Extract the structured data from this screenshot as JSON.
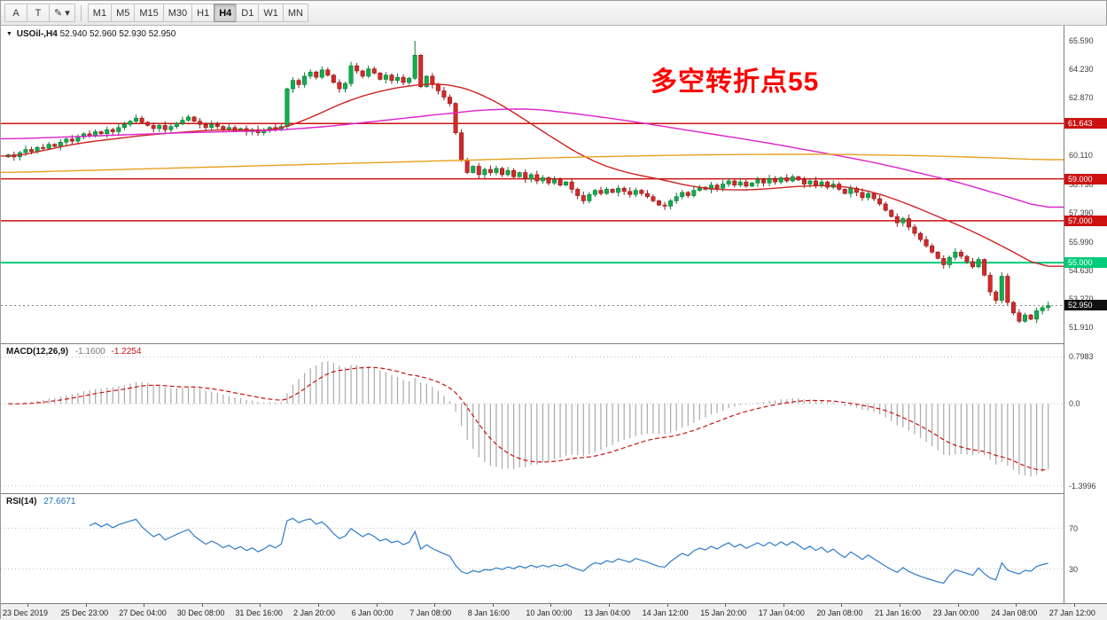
{
  "toolbar": {
    "tools": [
      {
        "id": "text-tool-button",
        "glyph": "A"
      },
      {
        "id": "cursor-tool-button",
        "glyph": "T"
      },
      {
        "id": "draw-objects-button",
        "glyph": "✎",
        "dropdown": true
      }
    ],
    "dropdown_glyph": "▾",
    "timeframes": [
      "M1",
      "M5",
      "M15",
      "M30",
      "H1",
      "H4",
      "D1",
      "W1",
      "MN"
    ],
    "active_timeframe": "H4"
  },
  "chart": {
    "symbol_label": "USOil-,H4",
    "ohlc_text": "52.940 52.960 52.930 52.950",
    "dropdown_glyph": "▼",
    "annotation": {
      "text": "多空转折点55",
      "color": "#ff0000"
    }
  },
  "indicators": {
    "macd": {
      "name": "MACD(12,26,9)",
      "value_main": "-1.1600",
      "value_signal": "-1.2254",
      "scale_labels": [
        "0.7983",
        "0.0",
        "-1.3996"
      ]
    },
    "rsi": {
      "name": "RSI(14)",
      "value": "27.6671",
      "scale_labels": [
        "70",
        "30"
      ]
    }
  },
  "chart_data": {
    "type": "candlestick",
    "title": "USOil H4 chart with MACD and RSI",
    "ylim": [
      51.15,
      66.31
    ],
    "price_ticks": [
      "65.590",
      "64.230",
      "62.870",
      "60.110",
      "58.750",
      "57.390",
      "55.990",
      "54.630",
      "53.270",
      "51.910"
    ],
    "hlines": [
      {
        "price": 61.643,
        "label": "61.643",
        "color": "#cc1111"
      },
      {
        "price": 59.0,
        "label": "59.000",
        "color": "#cc1111"
      },
      {
        "price": 57.0,
        "label": "57.000",
        "color": "#cc1111"
      },
      {
        "price": 55.0,
        "label": "55.000",
        "color": "#00cc7a"
      }
    ],
    "current_price": {
      "value": 52.95,
      "label": "52.950",
      "bg": "#111111"
    },
    "candles": {
      "closes": [
        60.15,
        60.05,
        60.25,
        60.4,
        60.3,
        60.5,
        60.45,
        60.65,
        60.55,
        60.75,
        60.9,
        60.8,
        61.0,
        61.15,
        61.05,
        61.25,
        61.15,
        61.35,
        61.25,
        61.45,
        61.6,
        61.75,
        61.9,
        61.7,
        61.55,
        61.4,
        61.55,
        61.35,
        61.5,
        61.65,
        61.8,
        61.95,
        61.75,
        61.6,
        61.45,
        61.6,
        61.5,
        61.35,
        61.45,
        61.3,
        61.4,
        61.25,
        61.35,
        61.2,
        61.3,
        61.45,
        61.35,
        61.5,
        63.3,
        63.7,
        63.5,
        63.9,
        64.1,
        63.85,
        64.2,
        63.95,
        63.6,
        63.3,
        63.55,
        64.4,
        64.15,
        63.9,
        64.25,
        64.05,
        63.75,
        63.95,
        63.7,
        63.85,
        63.6,
        63.8,
        64.9,
        63.4,
        63.9,
        63.5,
        63.2,
        62.9,
        62.6,
        61.2,
        59.9,
        59.3,
        59.6,
        59.2,
        59.45,
        59.3,
        59.5,
        59.2,
        59.4,
        59.1,
        59.3,
        59.0,
        59.2,
        58.9,
        59.05,
        58.8,
        58.95,
        58.7,
        58.85,
        58.5,
        58.2,
        57.95,
        58.25,
        58.45,
        58.3,
        58.5,
        58.35,
        58.55,
        58.4,
        58.25,
        58.45,
        58.3,
        58.15,
        57.95,
        57.75,
        57.7,
        57.95,
        58.15,
        58.35,
        58.2,
        58.45,
        58.6,
        58.5,
        58.7,
        58.55,
        58.75,
        58.9,
        58.7,
        58.85,
        58.65,
        58.8,
        58.95,
        58.8,
        59.0,
        58.85,
        59.05,
        58.9,
        59.1,
        58.95,
        58.75,
        58.9,
        58.7,
        58.85,
        58.6,
        58.75,
        58.5,
        58.3,
        58.55,
        58.35,
        58.1,
        58.3,
        58.05,
        57.8,
        57.5,
        57.2,
        56.9,
        57.1,
        56.7,
        56.4,
        56.1,
        55.8,
        55.5,
        55.2,
        54.9,
        55.25,
        55.5,
        55.3,
        55.05,
        54.8,
        55.15,
        54.4,
        53.6,
        53.2,
        54.35,
        53.1,
        52.6,
        52.2,
        52.5,
        52.3,
        52.7,
        52.85,
        52.95
      ],
      "wick_overrides": [
        {
          "index": 70,
          "high": 65.59
        },
        {
          "index": 71,
          "high": 64.95
        },
        {
          "index": 48,
          "low": 61.35
        }
      ]
    },
    "moving_averages": [
      {
        "name": "ma-fast-red",
        "color": "#cc2222",
        "points": [
          [
            0,
            60.0
          ],
          [
            12,
            60.7
          ],
          [
            24,
            61.1
          ],
          [
            36,
            61.35
          ],
          [
            46,
            61.3
          ],
          [
            52,
            61.9
          ],
          [
            58,
            62.7
          ],
          [
            64,
            63.2
          ],
          [
            70,
            63.5
          ],
          [
            76,
            63.55
          ],
          [
            82,
            63.0
          ],
          [
            88,
            62.0
          ],
          [
            94,
            60.9
          ],
          [
            100,
            59.9
          ],
          [
            106,
            59.3
          ],
          [
            112,
            59.0
          ],
          [
            118,
            58.6
          ],
          [
            124,
            58.45
          ],
          [
            130,
            58.5
          ],
          [
            136,
            58.65
          ],
          [
            142,
            58.7
          ],
          [
            148,
            58.45
          ],
          [
            154,
            57.9
          ],
          [
            160,
            57.2
          ],
          [
            166,
            56.5
          ],
          [
            171,
            55.8
          ],
          [
            175,
            55.2
          ],
          [
            179,
            54.6
          ]
        ]
      },
      {
        "name": "ma-mid-magenta",
        "color": "#dd22cc",
        "points": [
          [
            0,
            60.9
          ],
          [
            15,
            61.05
          ],
          [
            30,
            61.2
          ],
          [
            45,
            61.3
          ],
          [
            55,
            61.5
          ],
          [
            65,
            61.8
          ],
          [
            75,
            62.1
          ],
          [
            82,
            62.3
          ],
          [
            90,
            62.35
          ],
          [
            98,
            62.1
          ],
          [
            106,
            61.8
          ],
          [
            114,
            61.45
          ],
          [
            122,
            61.1
          ],
          [
            130,
            60.75
          ],
          [
            138,
            60.35
          ],
          [
            146,
            59.95
          ],
          [
            152,
            59.6
          ],
          [
            158,
            59.2
          ],
          [
            164,
            58.8
          ],
          [
            170,
            58.3
          ],
          [
            175,
            57.9
          ],
          [
            179,
            57.5
          ]
        ]
      },
      {
        "name": "ma-slow-orange",
        "color": "#e8a020",
        "points": [
          [
            0,
            59.3
          ],
          [
            20,
            59.45
          ],
          [
            40,
            59.6
          ],
          [
            60,
            59.75
          ],
          [
            80,
            59.9
          ],
          [
            100,
            60.05
          ],
          [
            120,
            60.15
          ],
          [
            140,
            60.18
          ],
          [
            158,
            60.1
          ],
          [
            170,
            60.0
          ],
          [
            179,
            59.9
          ]
        ]
      }
    ],
    "colors": {
      "bull": "#0fae4e",
      "bull_stroke": "#0a7a36",
      "bear": "#d42a2a",
      "bear_stroke": "#8f1616",
      "macd_hist": "#a9a9a9",
      "macd_signal": "#cc1111",
      "rsi": "#2b7cc9"
    },
    "time_labels": [
      "23 Dec 2019",
      "25 Dec 23:00",
      "27 Dec 04:00",
      "30 Dec 08:00",
      "31 Dec 16:00",
      "2 Jan 20:00",
      "6 Jan 00:00",
      "7 Jan 08:00",
      "8 Jan 16:00",
      "10 Jan 00:00",
      "13 Jan 04:00",
      "14 Jan 12:00",
      "15 Jan 20:00",
      "17 Jan 04:00",
      "20 Jan 08:00",
      "21 Jan 16:00",
      "23 Jan 00:00",
      "24 Jan 08:00",
      "27 Jan 12:00"
    ]
  }
}
